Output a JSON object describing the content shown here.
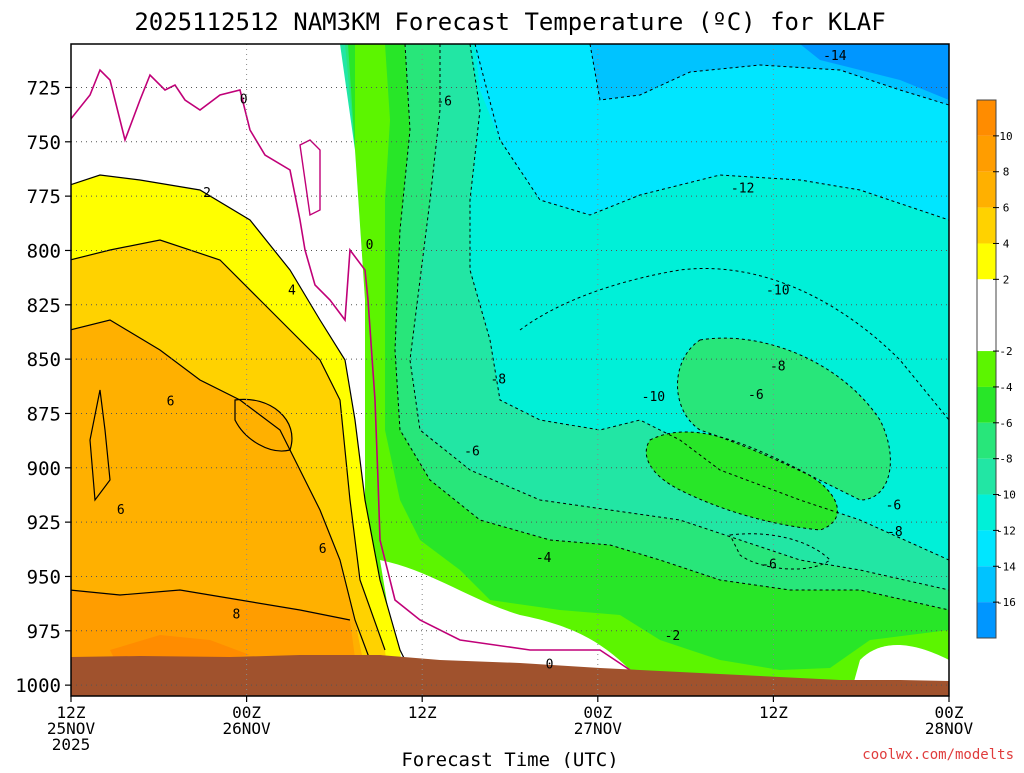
{
  "chart_data": {
    "type": "heatmap",
    "title": "2025112512 NAM3KM Forecast Temperature (ºC) for KLAF",
    "xlabel": "Forecast Time (UTC)",
    "ylabel": "",
    "x_ticks": [
      {
        "hour": 0,
        "line1": "12Z",
        "line2": "25NOV",
        "line3": "2025"
      },
      {
        "hour": 12,
        "line1": "00Z",
        "line2": "26NOV",
        "line3": ""
      },
      {
        "hour": 24,
        "line1": "12Z",
        "line2": "",
        "line3": ""
      },
      {
        "hour": 36,
        "line1": "00Z",
        "line2": "27NOV",
        "line3": ""
      },
      {
        "hour": 48,
        "line1": "12Z",
        "line2": "",
        "line3": ""
      },
      {
        "hour": 60,
        "line1": "00Z",
        "line2": "28NOV",
        "line3": ""
      }
    ],
    "xlim": [
      0,
      60
    ],
    "y_ticks": [
      "725",
      "750",
      "775",
      "800",
      "825",
      "850",
      "875",
      "900",
      "925",
      "950",
      "975",
      "1000"
    ],
    "y_tick_values": [
      725,
      750,
      775,
      800,
      825,
      850,
      875,
      900,
      925,
      950,
      975,
      1000
    ],
    "ylim": [
      705,
      1005
    ],
    "colorbar": {
      "labels": [
        "10",
        "8",
        "6",
        "4",
        "2",
        "-2",
        "-4",
        "-6",
        "-8",
        "-10",
        "-12",
        "-14",
        "-16"
      ],
      "bins": [
        {
          "from": 10,
          "to": 12,
          "color": "#ff8c00"
        },
        {
          "from": 8,
          "to": 10,
          "color": "#ff9d00"
        },
        {
          "from": 6,
          "to": 8,
          "color": "#ffb000"
        },
        {
          "from": 4,
          "to": 6,
          "color": "#ffd200"
        },
        {
          "from": 2,
          "to": 4,
          "color": "#ffff00"
        },
        {
          "from": -2,
          "to": 2,
          "color": "#ffffff"
        },
        {
          "from": -4,
          "to": -2,
          "color": "#5cf500"
        },
        {
          "from": -6,
          "to": -4,
          "color": "#28e628"
        },
        {
          "from": -8,
          "to": -6,
          "color": "#28e67a"
        },
        {
          "from": -10,
          "to": -8,
          "color": "#22e6a4"
        },
        {
          "from": -12,
          "to": -10,
          "color": "#00f0d8"
        },
        {
          "from": -14,
          "to": -12,
          "color": "#00e6ff"
        },
        {
          "from": -16,
          "to": -14,
          "color": "#00c3ff"
        },
        {
          "from": -18,
          "to": -16,
          "color": "#0096ff"
        }
      ]
    },
    "contour_labels": [
      {
        "text": "0",
        "hour": 11.8,
        "p": 730
      },
      {
        "text": "2",
        "hour": 9.3,
        "p": 773
      },
      {
        "text": "0",
        "hour": 20.4,
        "p": 797
      },
      {
        "text": "4",
        "hour": 15.1,
        "p": 818
      },
      {
        "text": "6",
        "hour": 6.8,
        "p": 869
      },
      {
        "text": "6",
        "hour": 3.4,
        "p": 919
      },
      {
        "text": "6",
        "hour": 17.2,
        "p": 937
      },
      {
        "text": "8",
        "hour": 11.3,
        "p": 967
      },
      {
        "text": "-6",
        "hour": 25.5,
        "p": 731
      },
      {
        "text": "-14",
        "hour": 52.2,
        "p": 710
      },
      {
        "text": "-12",
        "hour": 45.9,
        "p": 771
      },
      {
        "text": "-10",
        "hour": 48.3,
        "p": 818
      },
      {
        "text": "-8",
        "hour": 48.3,
        "p": 853
      },
      {
        "text": "-8",
        "hour": 29.2,
        "p": 859
      },
      {
        "text": "-10",
        "hour": 39.8,
        "p": 867
      },
      {
        "text": "-6",
        "hour": 46.8,
        "p": 866
      },
      {
        "text": "-6",
        "hour": 27.4,
        "p": 892
      },
      {
        "text": "-4",
        "hour": 32.3,
        "p": 941
      },
      {
        "text": "-6",
        "hour": 47.7,
        "p": 944
      },
      {
        "text": "-6",
        "hour": 56.2,
        "p": 917
      },
      {
        "text": "-8",
        "hour": 56.3,
        "p": 929
      },
      {
        "text": "-2",
        "hour": 41.1,
        "p": 977
      },
      {
        "text": "0",
        "hour": 32.7,
        "p": 990
      }
    ],
    "ground_label": "",
    "watermark": "coolwx.com/modelts"
  }
}
